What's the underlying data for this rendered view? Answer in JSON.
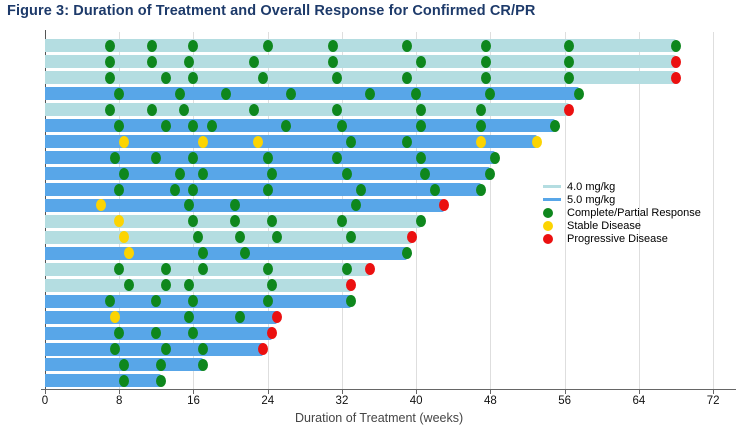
{
  "figure": {
    "title": "Figure 3: Duration of Treatment and Overall Response for Confirmed CR/PR",
    "title_color": "#1d3a6a"
  },
  "chart_data": {
    "type": "bar",
    "subtype": "swimmer",
    "title": "Figure 3: Duration of Treatment and Overall Response for Confirmed CR/PR",
    "xlabel": "Duration of Treatment (weeks)",
    "ylabel": "",
    "xlim": [
      0,
      74
    ],
    "x_ticks": [
      0,
      8,
      16,
      24,
      32,
      40,
      48,
      56,
      64,
      72
    ],
    "grid": true,
    "legend_position": "right-middle",
    "dose_colors": {
      "4.0": "#b4dde1",
      "5.0": "#58a6e8"
    },
    "marker_colors": {
      "cr": "#0e871d",
      "sd": "#fcd402",
      "pd": "#eb1010"
    },
    "legend": [
      {
        "label": "4.0 mg/kg",
        "swatch": "line",
        "color": "#b4dde1"
      },
      {
        "label": "5.0 mg/kg",
        "swatch": "line",
        "color": "#58a6e8"
      },
      {
        "label": "Complete/Partial Response",
        "swatch": "dot",
        "color": "#0e871d"
      },
      {
        "label": "Stable Disease",
        "swatch": "dot",
        "color": "#fcd402"
      },
      {
        "label": "Progressive Disease",
        "swatch": "dot",
        "color": "#eb1010"
      }
    ],
    "patients": [
      {
        "dose": "4.0",
        "duration": 68,
        "markers": [
          [
            7,
            "cr"
          ],
          [
            11.5,
            "cr"
          ],
          [
            16,
            "cr"
          ],
          [
            24,
            "cr"
          ],
          [
            31,
            "cr"
          ],
          [
            39,
            "cr"
          ],
          [
            47.5,
            "cr"
          ],
          [
            56.5,
            "cr"
          ],
          [
            68,
            "cr"
          ]
        ]
      },
      {
        "dose": "4.0",
        "duration": 68,
        "markers": [
          [
            7,
            "cr"
          ],
          [
            11.5,
            "cr"
          ],
          [
            15.5,
            "cr"
          ],
          [
            22.5,
            "cr"
          ],
          [
            31,
            "cr"
          ],
          [
            40.5,
            "cr"
          ],
          [
            47.5,
            "cr"
          ],
          [
            56.5,
            "cr"
          ],
          [
            68,
            "pd"
          ]
        ]
      },
      {
        "dose": "4.0",
        "duration": 68,
        "markers": [
          [
            7,
            "cr"
          ],
          [
            13,
            "cr"
          ],
          [
            16,
            "cr"
          ],
          [
            23.5,
            "cr"
          ],
          [
            31.5,
            "cr"
          ],
          [
            39,
            "cr"
          ],
          [
            47.5,
            "cr"
          ],
          [
            56.5,
            "cr"
          ],
          [
            68,
            "pd"
          ]
        ]
      },
      {
        "dose": "5.0",
        "duration": 57.5,
        "markers": [
          [
            8,
            "cr"
          ],
          [
            14.5,
            "cr"
          ],
          [
            19.5,
            "cr"
          ],
          [
            26.5,
            "cr"
          ],
          [
            35,
            "cr"
          ],
          [
            40,
            "cr"
          ],
          [
            48,
            "cr"
          ],
          [
            57.5,
            "cr"
          ]
        ]
      },
      {
        "dose": "4.0",
        "duration": 56.5,
        "markers": [
          [
            7,
            "cr"
          ],
          [
            11.5,
            "cr"
          ],
          [
            15,
            "cr"
          ],
          [
            22.5,
            "cr"
          ],
          [
            31.5,
            "cr"
          ],
          [
            40.5,
            "cr"
          ],
          [
            47,
            "cr"
          ],
          [
            56.5,
            "pd"
          ]
        ]
      },
      {
        "dose": "5.0",
        "duration": 55,
        "markers": [
          [
            8,
            "cr"
          ],
          [
            13,
            "cr"
          ],
          [
            16,
            "cr"
          ],
          [
            18,
            "cr"
          ],
          [
            26,
            "cr"
          ],
          [
            32,
            "cr"
          ],
          [
            40.5,
            "cr"
          ],
          [
            47,
            "cr"
          ],
          [
            55,
            "cr"
          ]
        ]
      },
      {
        "dose": "5.0",
        "duration": 53,
        "markers": [
          [
            8.5,
            "sd"
          ],
          [
            17,
            "sd"
          ],
          [
            23,
            "sd"
          ],
          [
            33,
            "cr"
          ],
          [
            39,
            "cr"
          ],
          [
            47,
            "sd"
          ],
          [
            53,
            "sd"
          ]
        ]
      },
      {
        "dose": "5.0",
        "duration": 48.5,
        "markers": [
          [
            7.5,
            "cr"
          ],
          [
            12,
            "cr"
          ],
          [
            16,
            "cr"
          ],
          [
            24,
            "cr"
          ],
          [
            31.5,
            "cr"
          ],
          [
            40.5,
            "cr"
          ],
          [
            48.5,
            "cr"
          ]
        ]
      },
      {
        "dose": "5.0",
        "duration": 48,
        "markers": [
          [
            8.5,
            "cr"
          ],
          [
            14.5,
            "cr"
          ],
          [
            17,
            "cr"
          ],
          [
            24.5,
            "cr"
          ],
          [
            32.5,
            "cr"
          ],
          [
            41,
            "cr"
          ],
          [
            48,
            "cr"
          ]
        ]
      },
      {
        "dose": "5.0",
        "duration": 47,
        "markers": [
          [
            8,
            "cr"
          ],
          [
            14,
            "cr"
          ],
          [
            16,
            "cr"
          ],
          [
            24,
            "cr"
          ],
          [
            34,
            "cr"
          ],
          [
            42,
            "cr"
          ],
          [
            47,
            "cr"
          ]
        ]
      },
      {
        "dose": "5.0",
        "duration": 43,
        "markers": [
          [
            6,
            "sd"
          ],
          [
            15.5,
            "cr"
          ],
          [
            20.5,
            "cr"
          ],
          [
            33.5,
            "cr"
          ],
          [
            43,
            "pd"
          ]
        ]
      },
      {
        "dose": "4.0",
        "duration": 40.5,
        "markers": [
          [
            8,
            "sd"
          ],
          [
            16,
            "cr"
          ],
          [
            20.5,
            "cr"
          ],
          [
            24.5,
            "cr"
          ],
          [
            32,
            "cr"
          ],
          [
            40.5,
            "cr"
          ]
        ]
      },
      {
        "dose": "4.0",
        "duration": 39.5,
        "markers": [
          [
            8.5,
            "sd"
          ],
          [
            16.5,
            "cr"
          ],
          [
            21,
            "cr"
          ],
          [
            25,
            "cr"
          ],
          [
            33,
            "cr"
          ],
          [
            39.5,
            "pd"
          ]
        ]
      },
      {
        "dose": "5.0",
        "duration": 39,
        "markers": [
          [
            9,
            "sd"
          ],
          [
            17,
            "cr"
          ],
          [
            21.5,
            "cr"
          ],
          [
            39,
            "cr"
          ]
        ]
      },
      {
        "dose": "4.0",
        "duration": 35,
        "markers": [
          [
            8,
            "cr"
          ],
          [
            13,
            "cr"
          ],
          [
            17,
            "cr"
          ],
          [
            24,
            "cr"
          ],
          [
            32.5,
            "cr"
          ],
          [
            35,
            "pd"
          ]
        ]
      },
      {
        "dose": "4.0",
        "duration": 33,
        "markers": [
          [
            9,
            "cr"
          ],
          [
            13,
            "cr"
          ],
          [
            15.5,
            "cr"
          ],
          [
            24.5,
            "cr"
          ],
          [
            33,
            "pd"
          ]
        ]
      },
      {
        "dose": "5.0",
        "duration": 33,
        "markers": [
          [
            7,
            "cr"
          ],
          [
            12,
            "cr"
          ],
          [
            16,
            "cr"
          ],
          [
            24,
            "cr"
          ],
          [
            33,
            "cr"
          ]
        ]
      },
      {
        "dose": "5.0",
        "duration": 25,
        "markers": [
          [
            7.5,
            "sd"
          ],
          [
            15.5,
            "cr"
          ],
          [
            21,
            "cr"
          ],
          [
            25,
            "pd"
          ]
        ]
      },
      {
        "dose": "5.0",
        "duration": 24.5,
        "markers": [
          [
            8,
            "cr"
          ],
          [
            12,
            "cr"
          ],
          [
            16,
            "cr"
          ],
          [
            24.5,
            "pd"
          ]
        ]
      },
      {
        "dose": "5.0",
        "duration": 23.5,
        "markers": [
          [
            7.5,
            "cr"
          ],
          [
            13,
            "cr"
          ],
          [
            17,
            "cr"
          ],
          [
            23.5,
            "pd"
          ]
        ]
      },
      {
        "dose": "5.0",
        "duration": 17,
        "markers": [
          [
            8.5,
            "cr"
          ],
          [
            12.5,
            "cr"
          ],
          [
            17,
            "cr"
          ]
        ]
      },
      {
        "dose": "5.0",
        "duration": 12.5,
        "markers": [
          [
            8.5,
            "cr"
          ],
          [
            12.5,
            "cr"
          ]
        ]
      }
    ]
  }
}
